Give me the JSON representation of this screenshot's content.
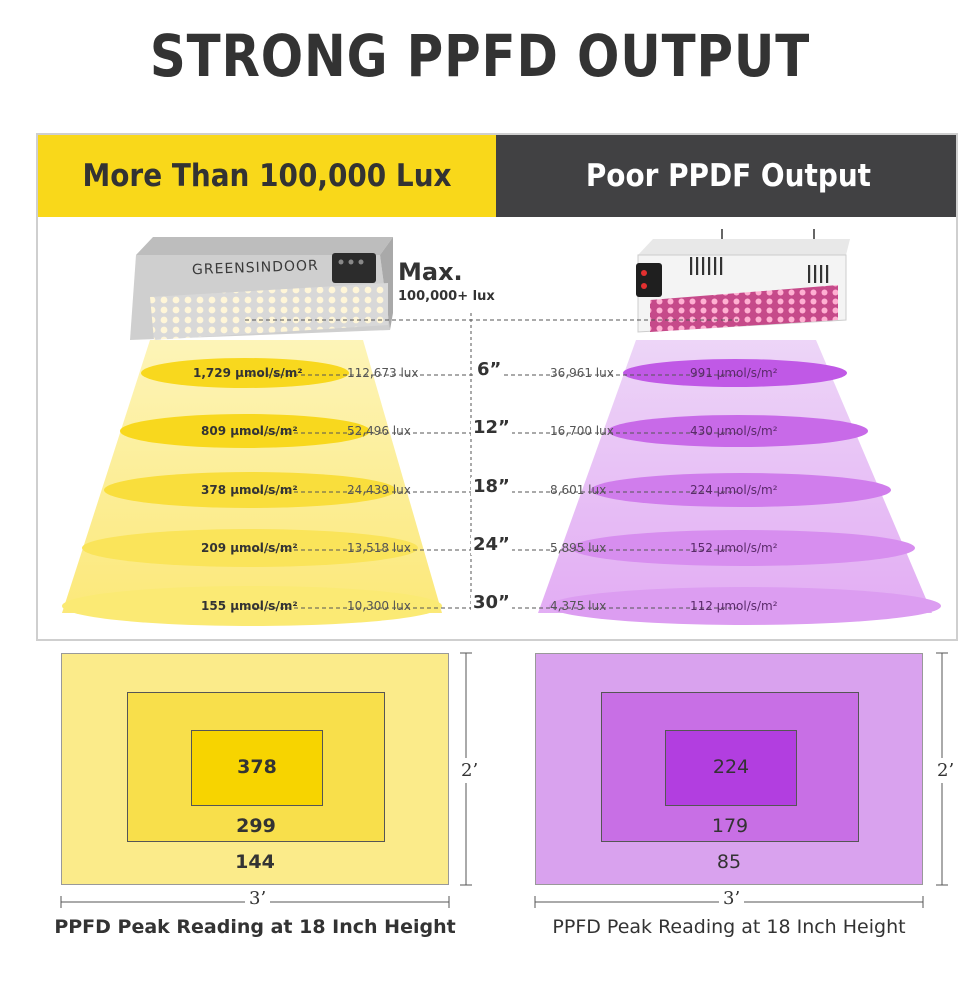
{
  "title": "STRONG PPFD OUTPUT",
  "left_header": "More Than 100,000 Lux",
  "right_header": "Poor PPDF Output",
  "lamp": {
    "brand": "GREENSINDOOR",
    "max_label": "Max.",
    "max_value": "100,000+ lux"
  },
  "levels": [
    {
      "height": "6”",
      "left_ppfd": "1,729 µmol/s/m²",
      "left_lux": "112,673 lux",
      "right_lux": "36,961 lux",
      "right_ppfd": "991 µmol/s/m²"
    },
    {
      "height": "12”",
      "left_ppfd": "809 µmol/s/m²",
      "left_lux": "52,496 lux",
      "right_lux": "16,700 lux",
      "right_ppfd": "430 µmol/s/m²"
    },
    {
      "height": "18”",
      "left_ppfd": "378 µmol/s/m²",
      "left_lux": "24,439 lux",
      "right_lux": "8,601 lux",
      "right_ppfd": "224 µmol/s/m²"
    },
    {
      "height": "24”",
      "left_ppfd": "209 µmol/s/m²",
      "left_lux": "13,518 lux",
      "right_lux": "5,895 lux",
      "right_ppfd": "152 µmol/s/m²"
    },
    {
      "height": "30”",
      "left_ppfd": "155 µmol/s/m²",
      "left_lux": "10,300 lux",
      "right_lux": "4,375 lux",
      "right_ppfd": "112 µmol/s/m²"
    }
  ],
  "left_map": {
    "outer": "144",
    "middle": "299",
    "inner": "378",
    "width_label": "3’",
    "height_label": "2’",
    "caption": "PPFD Peak Reading at 18 Inch Height"
  },
  "right_map": {
    "outer": "85",
    "middle": "179",
    "inner": "224",
    "width_label": "3’",
    "height_label": "2’",
    "caption": "PPFD Peak Reading at 18 Inch Height"
  },
  "colors": {
    "yellow": "#f9d81a",
    "dark_gray": "#414143",
    "purple": "#c36be0",
    "light_purple": "#d9a2ee"
  }
}
